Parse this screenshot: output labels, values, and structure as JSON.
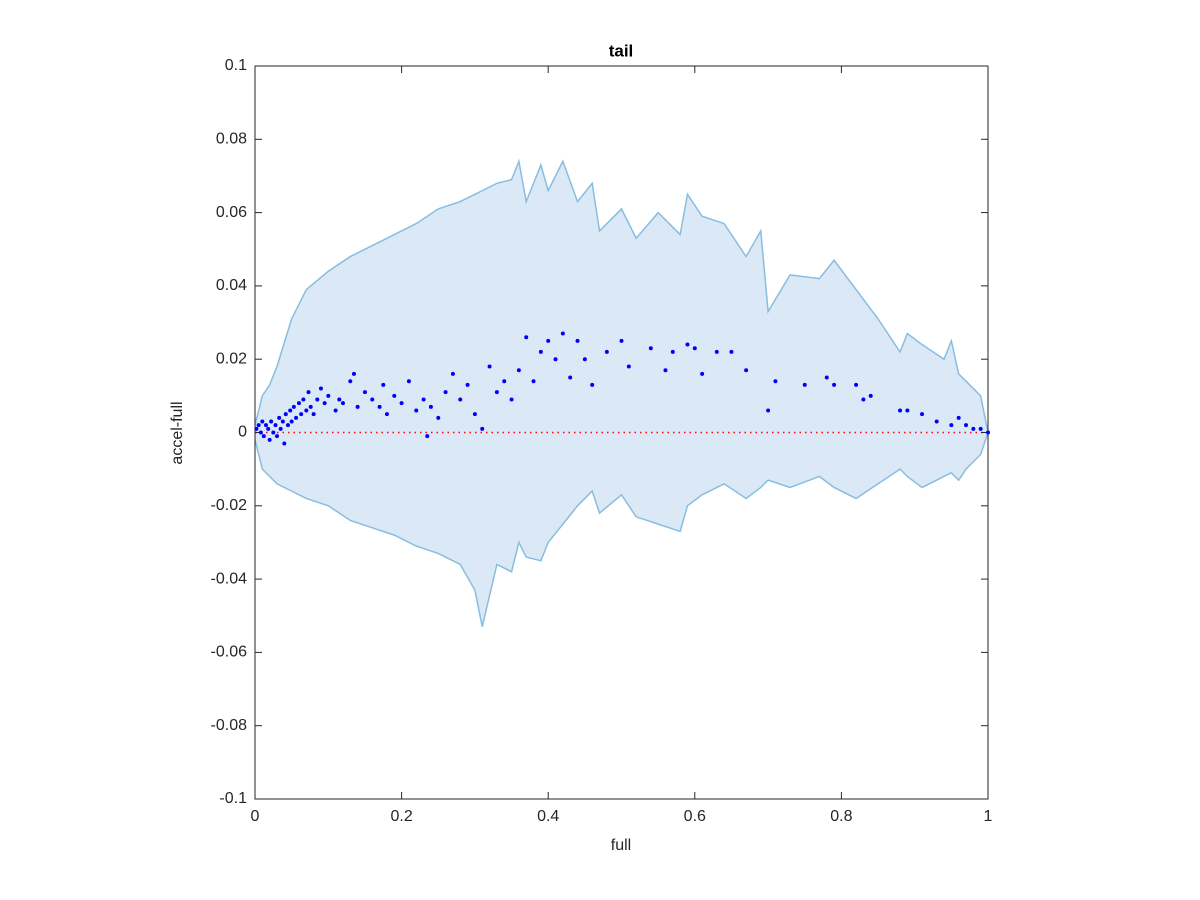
{
  "chart_data": {
    "type": "scatter",
    "title": "tail",
    "xlabel": "full",
    "ylabel": "accel-full",
    "xlim": [
      0,
      1
    ],
    "ylim": [
      -0.1,
      0.1
    ],
    "xticks": [
      0,
      0.2,
      0.4,
      0.6,
      0.8,
      1
    ],
    "yticks": [
      -0.1,
      -0.08,
      -0.06,
      -0.04,
      -0.02,
      0,
      0.02,
      0.04,
      0.06,
      0.08,
      0.1
    ],
    "band": {
      "color": "#88bde0",
      "fill": "#dae9f5",
      "x": [
        0,
        0.01,
        0.02,
        0.03,
        0.05,
        0.07,
        0.1,
        0.13,
        0.16,
        0.19,
        0.22,
        0.25,
        0.28,
        0.3,
        0.31,
        0.33,
        0.35,
        0.36,
        0.37,
        0.39,
        0.4,
        0.42,
        0.44,
        0.46,
        0.47,
        0.5,
        0.52,
        0.55,
        0.58,
        0.59,
        0.61,
        0.64,
        0.67,
        0.69,
        0.7,
        0.73,
        0.77,
        0.79,
        0.82,
        0.85,
        0.88,
        0.89,
        0.91,
        0.94,
        0.95,
        0.96,
        0.97,
        0.99,
        1
      ],
      "upper": [
        0.002,
        0.01,
        0.013,
        0.018,
        0.031,
        0.039,
        0.044,
        0.048,
        0.051,
        0.054,
        0.057,
        0.061,
        0.063,
        0.065,
        0.066,
        0.068,
        0.069,
        0.074,
        0.063,
        0.073,
        0.066,
        0.074,
        0.063,
        0.068,
        0.055,
        0.061,
        0.053,
        0.06,
        0.054,
        0.065,
        0.059,
        0.057,
        0.048,
        0.055,
        0.033,
        0.043,
        0.042,
        0.047,
        0.039,
        0.031,
        0.022,
        0.027,
        0.024,
        0.02,
        0.025,
        0.016,
        0.014,
        0.01,
        0
      ],
      "lower": [
        -0.002,
        -0.01,
        -0.012,
        -0.014,
        -0.016,
        -0.018,
        -0.02,
        -0.024,
        -0.026,
        -0.028,
        -0.031,
        -0.033,
        -0.036,
        -0.043,
        -0.053,
        -0.036,
        -0.038,
        -0.03,
        -0.034,
        -0.035,
        -0.03,
        -0.025,
        -0.02,
        -0.016,
        -0.022,
        -0.017,
        -0.023,
        -0.025,
        -0.027,
        -0.02,
        -0.017,
        -0.014,
        -0.018,
        -0.015,
        -0.013,
        -0.015,
        -0.012,
        -0.015,
        -0.018,
        -0.014,
        -0.01,
        -0.012,
        -0.015,
        -0.012,
        -0.011,
        -0.013,
        -0.01,
        -0.006,
        0
      ]
    },
    "reference_line": {
      "y": 0,
      "color": "#ff0000"
    },
    "series": [
      {
        "color": "#0000ff",
        "x": [
          0.002,
          0.005,
          0.008,
          0.01,
          0.012,
          0.015,
          0.018,
          0.02,
          0.022,
          0.025,
          0.028,
          0.03,
          0.033,
          0.035,
          0.038,
          0.04,
          0.042,
          0.045,
          0.048,
          0.05,
          0.053,
          0.056,
          0.06,
          0.063,
          0.066,
          0.07,
          0.073,
          0.076,
          0.08,
          0.085,
          0.09,
          0.095,
          0.1,
          0.11,
          0.115,
          0.12,
          0.13,
          0.135,
          0.14,
          0.15,
          0.16,
          0.17,
          0.175,
          0.18,
          0.19,
          0.2,
          0.21,
          0.22,
          0.23,
          0.235,
          0.24,
          0.25,
          0.26,
          0.27,
          0.28,
          0.29,
          0.3,
          0.31,
          0.32,
          0.33,
          0.34,
          0.35,
          0.36,
          0.37,
          0.38,
          0.39,
          0.4,
          0.41,
          0.42,
          0.43,
          0.44,
          0.45,
          0.46,
          0.48,
          0.5,
          0.51,
          0.54,
          0.56,
          0.57,
          0.59,
          0.6,
          0.61,
          0.63,
          0.65,
          0.67,
          0.7,
          0.71,
          0.75,
          0.78,
          0.79,
          0.82,
          0.83,
          0.84,
          0.88,
          0.89,
          0.91,
          0.93,
          0.95,
          0.96,
          0.97,
          0.98,
          0.99,
          1
        ],
        "values": [
          0.001,
          0.002,
          0.0,
          0.003,
          -0.001,
          0.002,
          0.001,
          -0.002,
          0.003,
          0.0,
          0.002,
          -0.001,
          0.004,
          0.001,
          0.003,
          -0.003,
          0.005,
          0.002,
          0.006,
          0.003,
          0.007,
          0.004,
          0.008,
          0.005,
          0.009,
          0.006,
          0.011,
          0.007,
          0.005,
          0.009,
          0.012,
          0.008,
          0.01,
          0.006,
          0.009,
          0.008,
          0.014,
          0.016,
          0.007,
          0.011,
          0.009,
          0.007,
          0.013,
          0.005,
          0.01,
          0.008,
          0.014,
          0.006,
          0.009,
          -0.001,
          0.007,
          0.004,
          0.011,
          0.016,
          0.009,
          0.013,
          0.005,
          0.001,
          0.018,
          0.011,
          0.014,
          0.009,
          0.017,
          0.026,
          0.014,
          0.022,
          0.025,
          0.02,
          0.027,
          0.015,
          0.025,
          0.02,
          0.013,
          0.022,
          0.025,
          0.018,
          0.023,
          0.017,
          0.022,
          0.024,
          0.023,
          0.016,
          0.022,
          0.022,
          0.017,
          0.006,
          0.014,
          0.013,
          0.015,
          0.013,
          0.013,
          0.009,
          0.01,
          0.006,
          0.006,
          0.005,
          0.003,
          0.002,
          0.004,
          0.002,
          0.001,
          0.001,
          0
        ]
      }
    ]
  }
}
